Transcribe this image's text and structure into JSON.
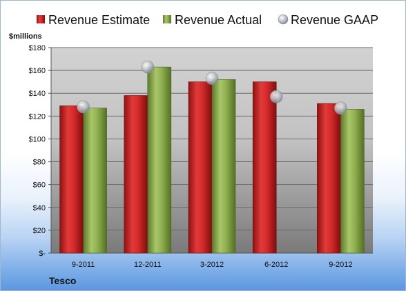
{
  "chart_data": {
    "type": "bar",
    "company": "Tesco",
    "unit_label": "$millions",
    "categories": [
      "9-2011",
      "12-2011",
      "3-2012",
      "6-2012",
      "9-2012"
    ],
    "series": [
      {
        "name": "Revenue Estimate",
        "kind": "bar",
        "color": "#d42a2a",
        "values": [
          129,
          138,
          150,
          150,
          131
        ]
      },
      {
        "name": "Revenue Actual",
        "kind": "bar",
        "color": "#8fb050",
        "values": [
          127,
          163,
          152,
          null,
          126
        ]
      },
      {
        "name": "Revenue GAAP",
        "kind": "marker",
        "color": "#b8bcc4",
        "values": [
          128,
          163,
          153,
          137,
          127
        ]
      }
    ],
    "ylim": [
      0,
      180
    ],
    "yticks": [
      {
        "value": 0,
        "label": "$-"
      },
      {
        "value": 20,
        "label": "$20"
      },
      {
        "value": 40,
        "label": "$40"
      },
      {
        "value": 60,
        "label": "$60"
      },
      {
        "value": 80,
        "label": "$80"
      },
      {
        "value": 100,
        "label": "$100"
      },
      {
        "value": 120,
        "label": "$120"
      },
      {
        "value": 140,
        "label": "$140"
      },
      {
        "value": 160,
        "label": "$160"
      },
      {
        "value": 180,
        "label": "$180"
      }
    ],
    "grid": true,
    "legend_position": "top"
  }
}
